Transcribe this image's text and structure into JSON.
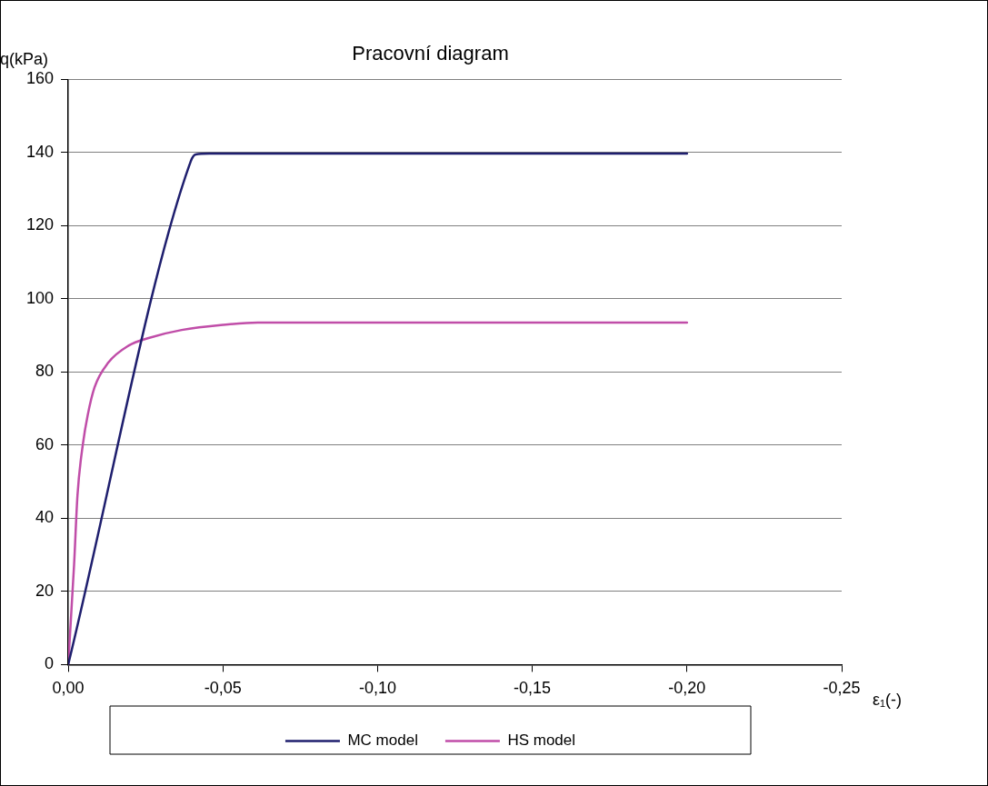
{
  "chart_data": {
    "type": "line",
    "title": "Pracovní diagram",
    "xlabel": "ε₁(-)",
    "ylabel": "q(kPa)",
    "xlim": [
      0,
      -0.25
    ],
    "xticks": [
      {
        "value": 0,
        "label": "0,00"
      },
      {
        "value": -0.05,
        "label": "-0,05"
      },
      {
        "value": -0.1,
        "label": "-0,10"
      },
      {
        "value": -0.15,
        "label": "-0,15"
      },
      {
        "value": -0.2,
        "label": "-0,20"
      },
      {
        "value": -0.25,
        "label": "-0,25"
      }
    ],
    "ylim": [
      0,
      160
    ],
    "yticks": [
      0,
      20,
      40,
      60,
      80,
      100,
      120,
      140,
      160
    ],
    "grid": "y",
    "legend": "bottom",
    "marker": "none",
    "line_style": "solid",
    "series": [
      {
        "name": "MC model",
        "color": "#1f1f6e",
        "x": [
          0,
          -0.0396,
          -0.0412,
          -0.0456,
          -0.2
        ],
        "values": [
          0,
          137.6,
          139.5,
          139.7,
          139.7
        ]
      },
      {
        "name": "HS model",
        "color": "#c04da8",
        "x": [
          0,
          -0.0019,
          -0.003,
          -0.0048,
          -0.0063,
          -0.0085,
          -0.0129,
          -0.0195,
          -0.026,
          -0.0367,
          -0.05,
          -0.0613,
          -0.2
        ],
        "values": [
          0,
          27.3,
          46.3,
          60.6,
          68.2,
          75.8,
          82.5,
          87.2,
          89.3,
          91.5,
          92.9,
          93.5,
          93.5
        ]
      }
    ]
  }
}
